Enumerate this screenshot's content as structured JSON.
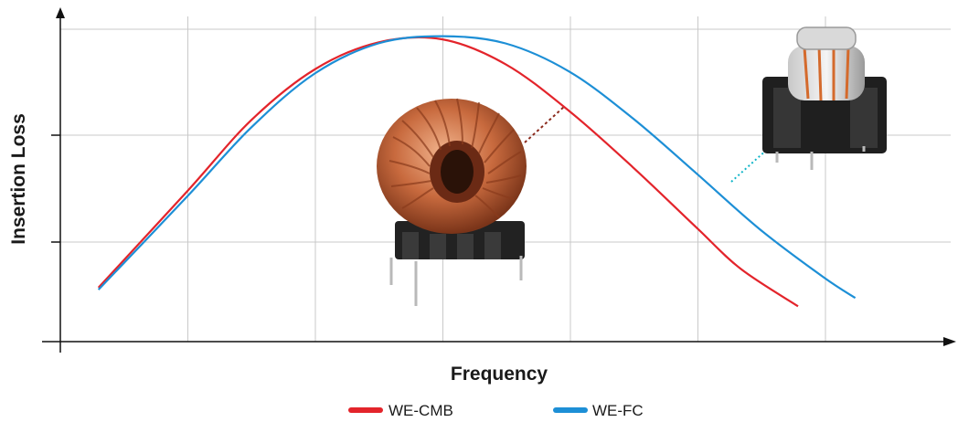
{
  "chart_data": {
    "type": "line",
    "title": "",
    "xlabel": "Frequency",
    "ylabel": "Insertion Loss",
    "xlim": [
      0,
      7
    ],
    "ylim": [
      0,
      3.2
    ],
    "grid": true,
    "legend_position": "bottom",
    "series": [
      {
        "name": "WE-CMB",
        "color": "#e3242b",
        "x": [
          0.3,
          1.0,
          1.5,
          2.0,
          2.5,
          3.0,
          3.5,
          4.0,
          4.5,
          5.0,
          5.35,
          5.8
        ],
        "y": [
          0.52,
          1.45,
          2.13,
          2.62,
          2.88,
          2.91,
          2.67,
          2.22,
          1.68,
          1.1,
          0.7,
          0.34
        ]
      },
      {
        "name": "WE-FC",
        "color": "#1d8fd6",
        "x": [
          0.3,
          1.0,
          1.5,
          2.0,
          2.5,
          3.0,
          3.5,
          4.0,
          4.5,
          5.0,
          5.5,
          6.0,
          6.25
        ],
        "y": [
          0.5,
          1.4,
          2.06,
          2.58,
          2.87,
          2.94,
          2.87,
          2.6,
          2.15,
          1.62,
          1.08,
          0.62,
          0.42
        ]
      }
    ],
    "annotations": [
      {
        "icon": "toroidal-choke-icon",
        "series": "WE-CMB",
        "color": "#8b2a1c"
      },
      {
        "icon": "filter-choke-icon",
        "series": "WE-FC",
        "color": "#11b5c8"
      }
    ]
  }
}
